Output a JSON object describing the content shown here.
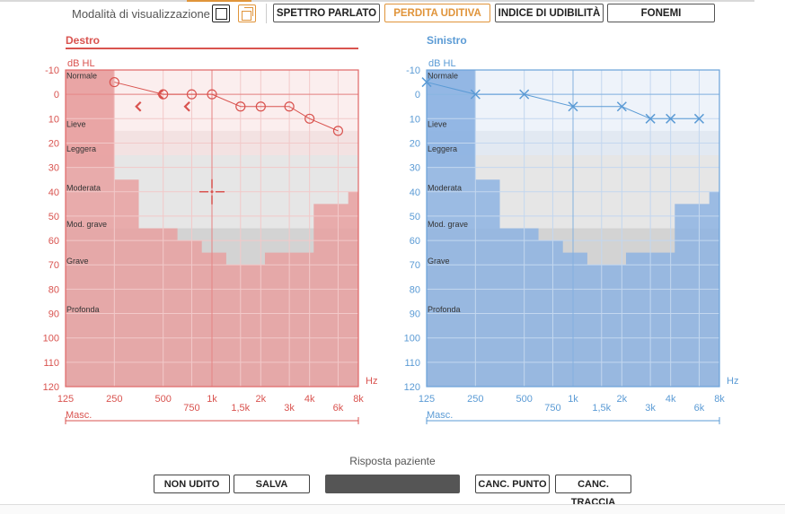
{
  "toolbar": {
    "mode_label": "Modalità di visualizzazione",
    "tabs": [
      {
        "label": "SPETTRO PARLATO",
        "active": false
      },
      {
        "label": "PERDITA UDITIVA",
        "active": true
      },
      {
        "label": "INDICE DI UDIBILITÀ",
        "active": false
      },
      {
        "label": "FONEMI",
        "active": false
      }
    ],
    "accent_color": "#e0943a"
  },
  "audiograms": {
    "y_unit": "dB HL",
    "x_unit": "Hz",
    "masking_label": "Masc.",
    "y_ticks": [
      "-10",
      "0",
      "10",
      "20",
      "30",
      "40",
      "50",
      "60",
      "70",
      "80",
      "90",
      "100",
      "110",
      "120"
    ],
    "x_ticks_main": [
      "125",
      "250",
      "500",
      "1k",
      "2k",
      "4k",
      "8k"
    ],
    "x_ticks_sub": [
      "750",
      "1,5k",
      "3k",
      "6k"
    ],
    "severity_labels": [
      "Normale",
      "Lieve",
      "Leggera",
      "Moderata",
      "Mod. grave",
      "Grave",
      "Profonda"
    ],
    "right": {
      "title": "Destro",
      "color": "#d9534f",
      "symbol": "circle"
    },
    "left": {
      "title": "Sinistro",
      "color": "#5b9bd5",
      "symbol": "cross"
    }
  },
  "chart_data": [
    {
      "type": "line",
      "title": "Destro",
      "ylabel": "dB HL",
      "xlabel": "Hz",
      "ylim": [
        -10,
        120
      ],
      "y_inverted": true,
      "x_scale": "log",
      "x": [
        250,
        500,
        750,
        1000,
        1500,
        2000,
        3000,
        4000,
        6000
      ],
      "y": [
        -5,
        0,
        0,
        0,
        5,
        5,
        5,
        10,
        15
      ],
      "masking_markers": [
        {
          "freq": 350,
          "db": 5
        },
        {
          "freq": 700,
          "db": 5
        },
        {
          "freq": 480,
          "db": 0
        }
      ]
    },
    {
      "type": "line",
      "title": "Sinistro",
      "ylabel": "dB HL",
      "xlabel": "Hz",
      "ylim": [
        -10,
        120
      ],
      "y_inverted": true,
      "x_scale": "log",
      "x": [
        125,
        250,
        500,
        1000,
        2000,
        3000,
        4000,
        6000
      ],
      "y": [
        -5,
        0,
        0,
        5,
        5,
        10,
        10,
        10
      ]
    }
  ],
  "speech_banana": {
    "freqs": [
      125,
      250,
      500,
      750,
      1000,
      1500,
      3000,
      6000,
      8000
    ],
    "db": [
      -10,
      35,
      55,
      60,
      65,
      70,
      65,
      45,
      40
    ]
  },
  "bottom": {
    "response_label": "Risposta paziente",
    "buttons": [
      "NON UDITO",
      "SALVA",
      "",
      "CANC. PUNTO",
      "CANC. TRACCIA"
    ]
  }
}
